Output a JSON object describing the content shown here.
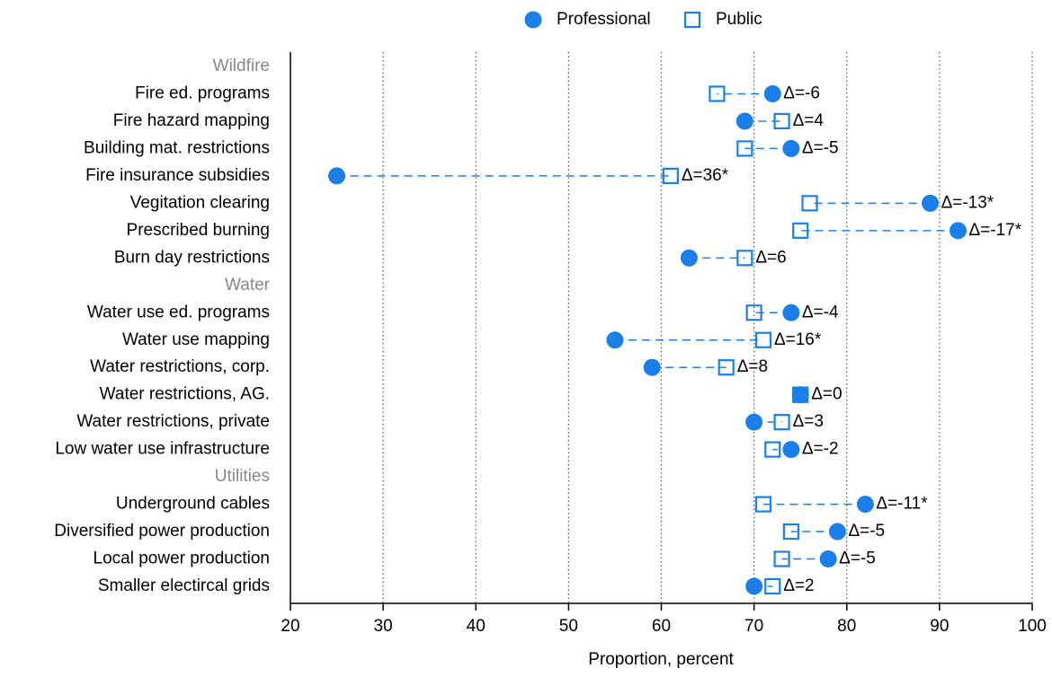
{
  "chart_data": {
    "type": "dot",
    "xlabel": "Proportion, percent",
    "categories": [
      "Wildfire",
      "Fire ed. programs",
      "Fire hazard mapping",
      "Building mat. restrictions",
      "Fire insurance subsidies",
      "Vegitation clearing",
      "Prescribed burning",
      "Burn day restrictions",
      "Water",
      "Water use ed. programs",
      "Water use mapping",
      "Water restrictions, corp.",
      "Water restrictions, AG.",
      "Water restrictions, private",
      "Low water use infrastructure",
      "Utilities",
      "Underground cables",
      "Diversified power production",
      "Local power production",
      "Smaller electircal grids"
    ],
    "series": [
      {
        "name": "Professional",
        "color": "#1a7fe8",
        "marker": "circle",
        "values": [
          null,
          72,
          69,
          74,
          25,
          89,
          92,
          63,
          null,
          74,
          55,
          59,
          75,
          70,
          74,
          null,
          82,
          79,
          78,
          70
        ]
      },
      {
        "name": "Public",
        "color": "#1a7fe8",
        "marker": "square",
        "values": [
          null,
          66,
          73,
          69,
          61,
          76,
          75,
          69,
          null,
          70,
          71,
          67,
          75,
          73,
          72,
          null,
          71,
          74,
          73,
          72
        ]
      }
    ],
    "annotations": [
      null,
      "Δ=-6",
      "Δ=4",
      "Δ=-5",
      "Δ=36*",
      "Δ=-13*",
      "Δ=-17*",
      "Δ=6",
      null,
      "Δ=-4",
      "Δ=16*",
      "Δ=8",
      "Δ=0",
      "Δ=3",
      "Δ=-2",
      null,
      "Δ=-11*",
      "Δ=-5",
      "Δ=-5",
      "Δ=2"
    ],
    "xlim": [
      20,
      100
    ],
    "xticks": [
      20,
      30,
      40,
      50,
      60,
      70,
      80,
      90,
      100
    ],
    "grid": true,
    "legend": "top"
  }
}
